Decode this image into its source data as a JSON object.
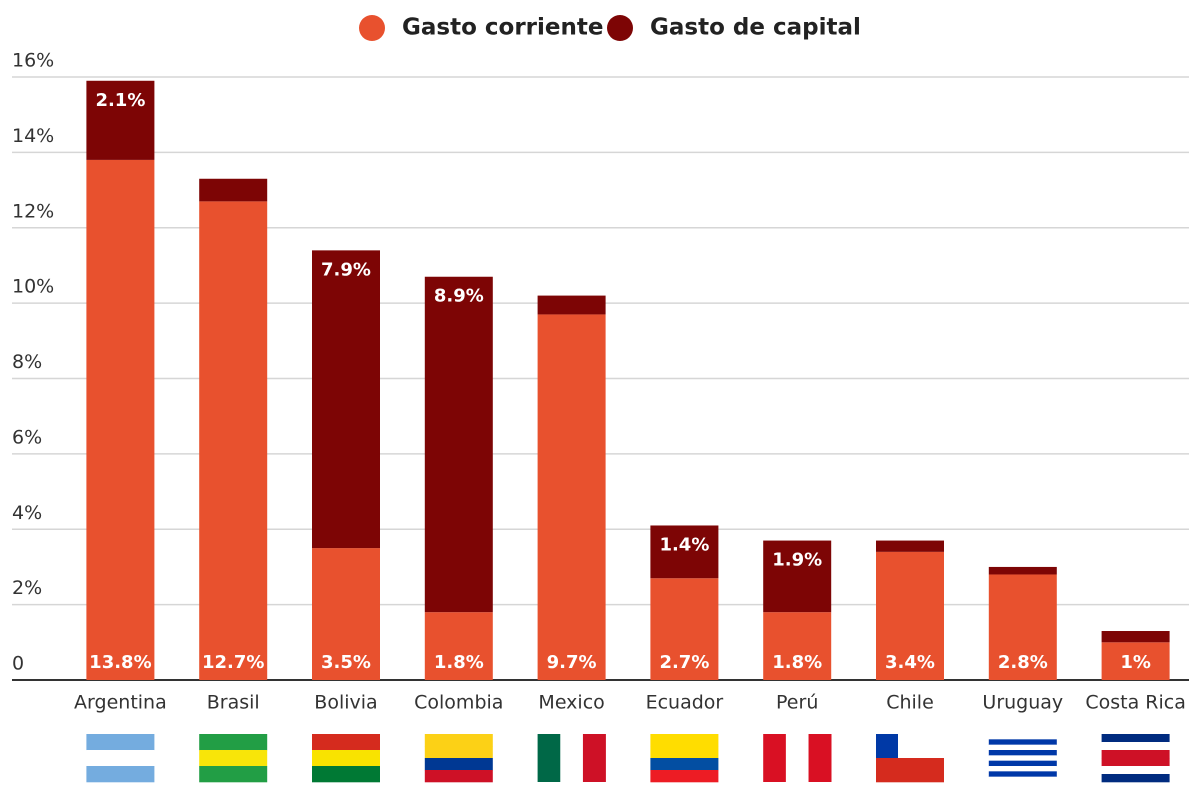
{
  "chart_data": {
    "type": "stacked_bar",
    "categories": [
      "Argentina",
      "Brasil",
      "Bolivia",
      "Colombia",
      "Mexico",
      "Ecuador",
      "Perú",
      "Chile",
      "Uruguay",
      "Costa Rica"
    ],
    "series": [
      {
        "name": "Gasto corriente",
        "color": "#e8512e",
        "values": [
          13.8,
          12.7,
          3.5,
          1.8,
          9.7,
          2.7,
          1.8,
          3.4,
          2.8,
          1
        ],
        "value_labels": [
          "13.8%",
          "12.7%",
          "3.5%",
          "1.8%",
          "9.7%",
          "2.7%",
          "1.8%",
          "3.4%",
          "2.8%",
          "1%"
        ]
      },
      {
        "name": "Gasto de capital",
        "color": "#7d0505",
        "values": [
          2.1,
          0.6,
          7.9,
          8.9,
          0.5,
          1.4,
          1.9,
          0.3,
          0.2,
          0.3
        ],
        "value_labels": [
          "2.1%",
          null,
          "7.9%",
          "8.9%",
          null,
          "1.4%",
          "1.9%",
          null,
          null,
          null
        ]
      }
    ],
    "ylim": [
      0,
      16
    ],
    "yticks": [
      0,
      {
        "value": 2,
        "label": "2%"
      },
      {
        "value": 4,
        "label": "4%"
      },
      {
        "value": 6,
        "label": "6%"
      },
      {
        "value": 8,
        "label": "8%"
      },
      {
        "value": 10,
        "label": "10%"
      },
      {
        "value": 12,
        "label": "12%"
      },
      {
        "value": 14,
        "label": "14%"
      },
      {
        "value": 16,
        "label": "16%"
      }
    ],
    "grid": true,
    "legend": "top"
  }
}
